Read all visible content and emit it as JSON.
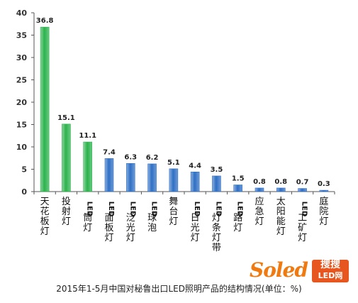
{
  "chart_data": {
    "type": "bar",
    "categories": [
      "天花板灯",
      "投射灯",
      "LED筒灯",
      "LED面板灯",
      "LED泛光灯",
      "LED球泡",
      "舞台灯",
      "LED日光灯",
      "LED灯条灯带",
      "LED路灯",
      "应急灯",
      "太阳能灯",
      "LED工矿灯",
      "庭院灯"
    ],
    "values": [
      36.8,
      15.1,
      11.1,
      7.4,
      6.3,
      6.2,
      5.1,
      4.4,
      3.5,
      1.5,
      0.8,
      0.8,
      0.7,
      0.3
    ],
    "value_labels": [
      "36.8",
      "15.1",
      "11.1",
      "7.4",
      "6.3",
      "6.2",
      "5.1",
      "4.4",
      "3.5",
      "1.5",
      "0.8",
      "0.8",
      "0.7",
      "0.3"
    ],
    "bar_colors": [
      "#2bb24c",
      "#2bb24c",
      "#2bb24c",
      "#2f6fc4",
      "#2f6fc4",
      "#2f6fc4",
      "#2f6fc4",
      "#2f6fc4",
      "#2f6fc4",
      "#2f6fc4",
      "#2f6fc4",
      "#2f6fc4",
      "#2f6fc4",
      "#2f6fc4"
    ],
    "ylim": [
      0,
      40
    ],
    "yticks": [
      0,
      5,
      10,
      15,
      20,
      25,
      30,
      35,
      40
    ],
    "grid": false,
    "title": "",
    "xlabel": "",
    "ylabel": ""
  },
  "caption": "2015年1-5月中国对秘鲁出口LED照明产品的结构情况(单位：%)",
  "watermark": {
    "word": "Soled",
    "badge_top": "搜搜",
    "badge_bottom": "LED网"
  }
}
